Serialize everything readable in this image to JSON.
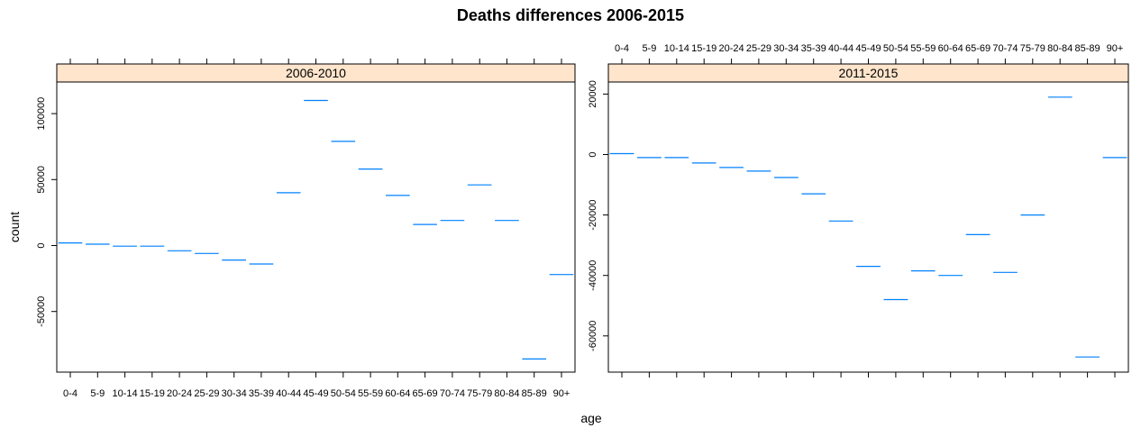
{
  "chart_data": {
    "type": "scatter",
    "title": "Deaths differences 2006-2015",
    "xlabel": "age",
    "ylabel": "count",
    "categories": [
      "0-4",
      "5-9",
      "10-14",
      "15-19",
      "20-24",
      "25-29",
      "30-34",
      "35-39",
      "40-44",
      "45-49",
      "50-54",
      "55-59",
      "60-64",
      "65-69",
      "70-74",
      "75-79",
      "80-84",
      "85-89",
      "90+"
    ],
    "colors": {
      "marker": "#0080ff",
      "strip": "#ffe5cc",
      "frame": "#000000"
    },
    "panels": [
      {
        "label": "2006-2010",
        "ylim": [
          -96000,
          124000
        ],
        "yticks": [
          -50000,
          0,
          50000,
          100000
        ],
        "ytick_labels": [
          "-50000",
          "0",
          "50000",
          "100000"
        ],
        "values": [
          2000,
          1000,
          -500,
          -500,
          -4000,
          -6000,
          -11000,
          -14000,
          40000,
          110000,
          79000,
          58000,
          38000,
          16000,
          19000,
          46000,
          19000,
          -86000,
          -22000
        ]
      },
      {
        "label": "2011-2015",
        "ylim": [
          -72000,
          24000
        ],
        "yticks": [
          -60000,
          -40000,
          -20000,
          0,
          20000
        ],
        "ytick_labels": [
          "-60000",
          "-40000",
          "-20000",
          "0",
          "20000"
        ],
        "values": [
          300,
          -1000,
          -1000,
          -2800,
          -4300,
          -5500,
          -7600,
          -13000,
          -22000,
          -37000,
          -48000,
          -38500,
          -40000,
          -26500,
          -39000,
          -20000,
          19000,
          -67000,
          -1000
        ]
      }
    ]
  }
}
